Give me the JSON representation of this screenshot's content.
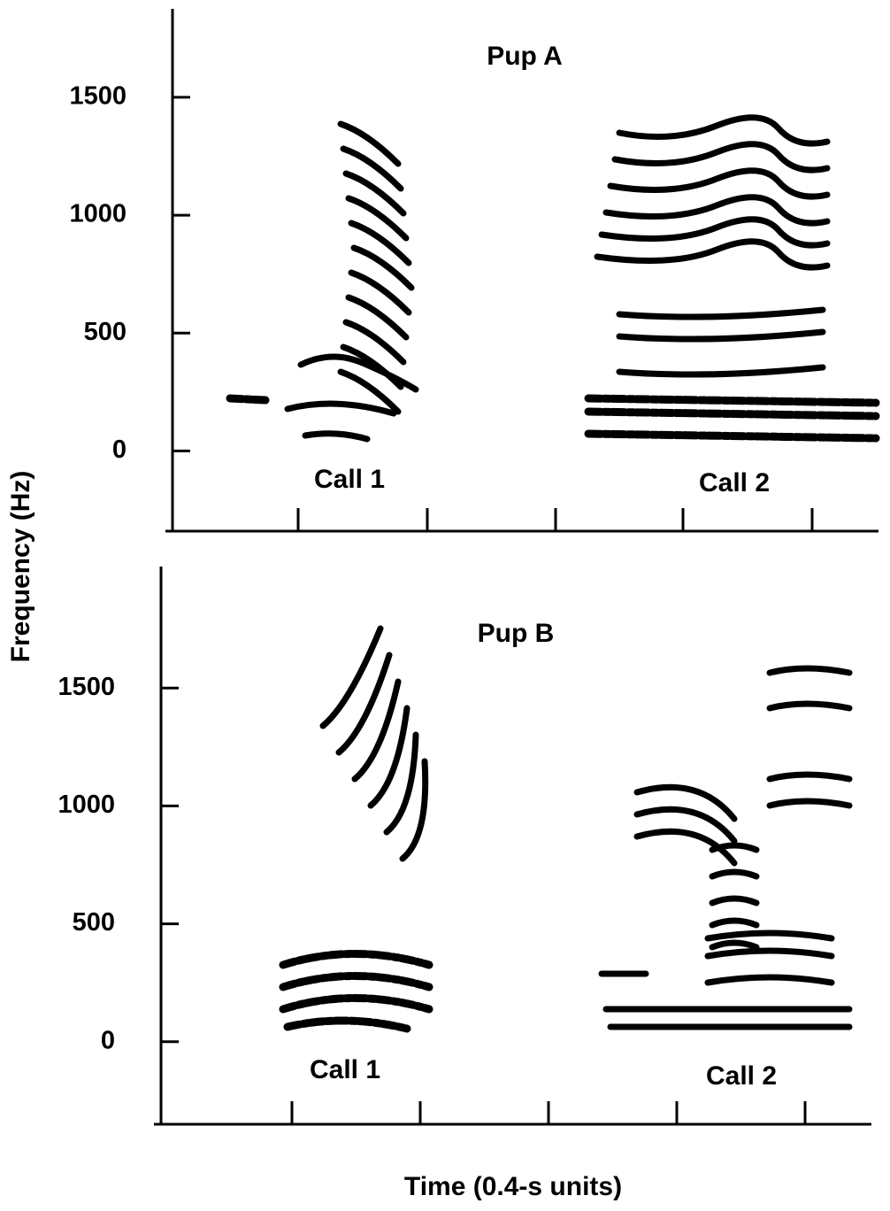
{
  "chart_data": [
    {
      "type": "spectrogram",
      "title": "Pup A",
      "ylabel": "Frequency (Hz)",
      "ylim": [
        -340,
        1875
      ],
      "yticks": [
        0,
        500,
        1000,
        1500
      ],
      "annotations": [
        "Call 1",
        "Call 2"
      ]
    },
    {
      "type": "spectrogram",
      "title": "Pup B",
      "xlabel": "Time (0.4-s units)",
      "ylim": [
        -350,
        2015
      ],
      "yticks": [
        0,
        500,
        1000,
        1500
      ],
      "annotations": [
        "Call 1",
        "Call 2"
      ]
    }
  ]
}
